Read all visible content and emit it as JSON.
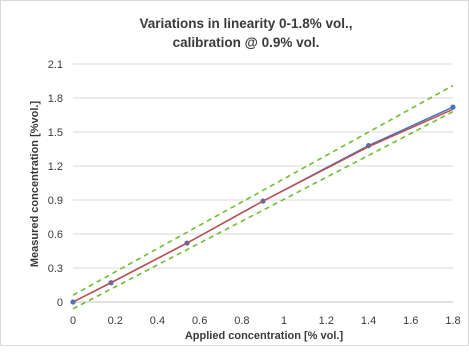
{
  "chart_data": {
    "type": "line",
    "title": [
      "Variations in linearity 0-1.8% vol.,",
      "calibration @ 0.9% vol."
    ],
    "xlabel": "Applied concentration [% vol.]",
    "ylabel": "Measured concentration [%vol.]",
    "xlim": [
      0,
      1.8
    ],
    "ylim": [
      0,
      2.1
    ],
    "xticks": [
      "0",
      "0.2",
      "0.4",
      "0.6",
      "0.8",
      "1",
      "1.2",
      "1.4",
      "1.6",
      "1.8"
    ],
    "yticks": [
      "0",
      "0.3",
      "0.6",
      "0.9",
      "1.2",
      "1.5",
      "1.8",
      "2.1"
    ],
    "grid": "horizontal",
    "legend": "none",
    "series": [
      {
        "style": "solid",
        "color": "#4472c4",
        "markers": true,
        "x": [
          0,
          0.18,
          0.54,
          0.9,
          1.4,
          1.8
        ],
        "y": [
          0,
          0.17,
          0.52,
          0.89,
          1.38,
          1.72
        ]
      },
      {
        "style": "solid",
        "color": "#c0504d",
        "markers": false,
        "x": [
          0,
          0.18,
          0.54,
          0.9,
          1.4,
          1.8
        ],
        "y": [
          0,
          0.17,
          0.52,
          0.89,
          1.37,
          1.7
        ]
      },
      {
        "style": "dashed",
        "color": "#6fbf2f",
        "markers": false,
        "x": [
          0,
          1.8
        ],
        "y": [
          0.06,
          1.91
        ]
      },
      {
        "style": "dashed",
        "color": "#6fbf2f",
        "markers": false,
        "x": [
          0,
          1.8
        ],
        "y": [
          -0.06,
          1.68
        ]
      }
    ]
  }
}
